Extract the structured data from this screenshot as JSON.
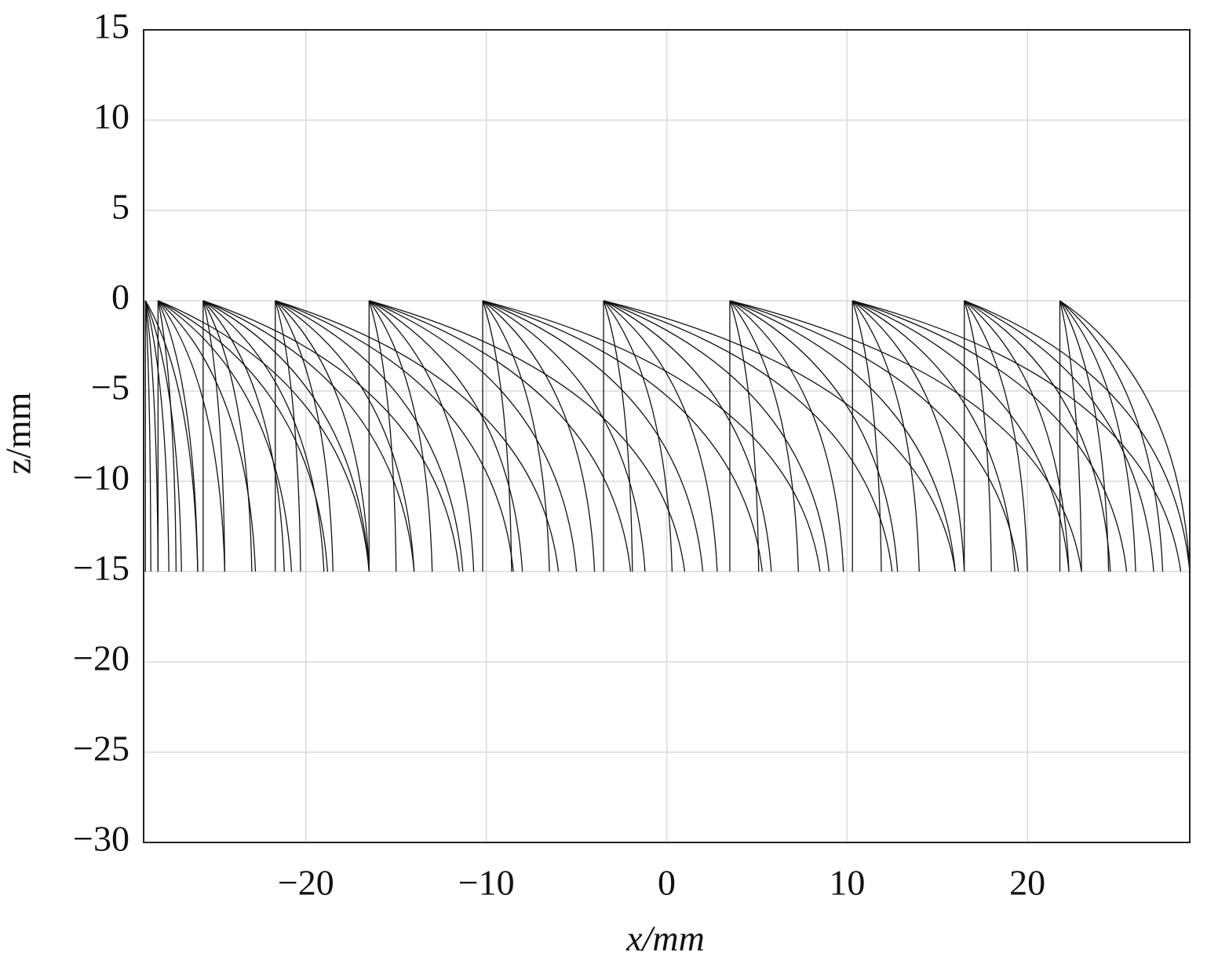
{
  "chart_data": {
    "type": "rays",
    "x_label": "x/mm",
    "y_label": "z/mm",
    "xlim": [
      -29,
      29
    ],
    "ylim": [
      -30,
      15
    ],
    "xticks": [
      {
        "value": -20,
        "label": "−20"
      },
      {
        "value": -10,
        "label": "−10"
      },
      0,
      10,
      20
    ],
    "yticks": [
      15,
      10,
      5,
      0,
      {
        "value": -5,
        "label": "−5"
      },
      {
        "value": -10,
        "label": "−10"
      },
      {
        "value": -15,
        "label": "−15"
      },
      {
        "value": -20,
        "label": "−20"
      },
      {
        "value": -25,
        "label": "−25"
      },
      {
        "value": -30,
        "label": "−30"
      }
    ],
    "grid": true,
    "color": "#111111",
    "z_top": 0,
    "z_bottom": -15,
    "fans": [
      {
        "source_x": -28.9,
        "ends": [
          -28.9,
          -28.6,
          -28.2,
          -27.6,
          -26.9,
          -26
        ]
      },
      {
        "source_x": -28.2,
        "ends": [
          -28.2,
          -27.2,
          -26,
          -24.5,
          -22.8,
          -20.8,
          -18.8,
          -16.5
        ]
      },
      {
        "source_x": -25.7,
        "ends": [
          -25.7,
          -24.5,
          -23,
          -21.2,
          -19,
          -16.5,
          -14,
          -11.5
        ]
      },
      {
        "source_x": -21.7,
        "ends": [
          -21.7,
          -20.3,
          -18.5,
          -16.5,
          -14,
          -11.3,
          -8.5,
          -6
        ]
      },
      {
        "source_x": -16.5,
        "ends": [
          -16.5,
          -15,
          -13,
          -10.7,
          -8,
          -5,
          -2,
          1
        ]
      },
      {
        "source_x": -10.2,
        "ends": [
          -10.2,
          -8.6,
          -6.5,
          -4,
          -1.2,
          2,
          5.3,
          8.5
        ]
      },
      {
        "source_x": -3.5,
        "ends": [
          -3.5,
          -1.9,
          0.3,
          2.8,
          5.8,
          9,
          12.5,
          16
        ]
      },
      {
        "source_x": 3.5,
        "ends": [
          3.5,
          5.1,
          7.3,
          9.8,
          12.8,
          16,
          19.5,
          23
        ]
      },
      {
        "source_x": 10.3,
        "ends": [
          10.3,
          11.9,
          14,
          16.5,
          19.3,
          22.3,
          25.5,
          28.5
        ]
      },
      {
        "source_x": 16.5,
        "ends": [
          16.5,
          18,
          20,
          22.3,
          24.6,
          27,
          29
        ]
      },
      {
        "source_x": 21.8,
        "ends": [
          21.8,
          23,
          24.5,
          26,
          27.5,
          29
        ]
      }
    ]
  }
}
